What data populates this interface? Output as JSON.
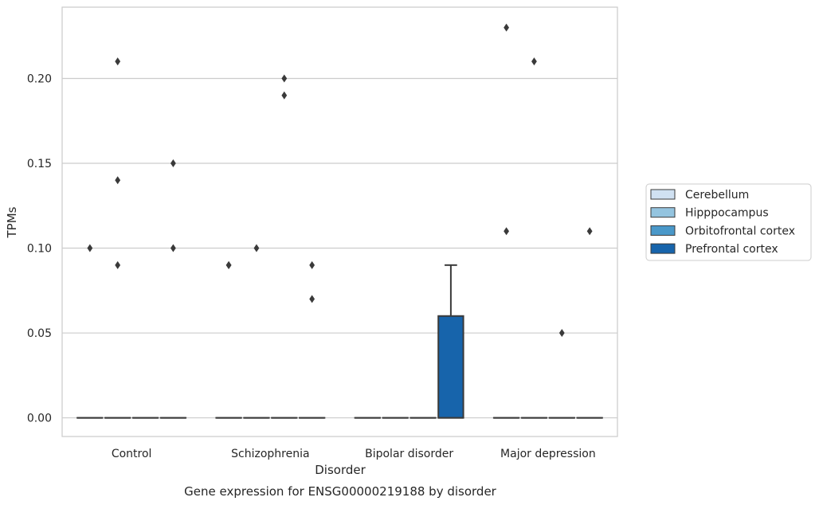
{
  "chart_data": {
    "type": "box",
    "caption": "Gene expression for ENSG00000219188 by disorder",
    "xlabel": "Disorder",
    "ylabel": "TPMs",
    "ylim": [
      -0.011,
      0.242
    ],
    "yticks": [
      0.0,
      0.05,
      0.1,
      0.15,
      0.2
    ],
    "ytick_labels": [
      "0.00",
      "0.05",
      "0.10",
      "0.15",
      "0.20"
    ],
    "grid": "horizontal",
    "legend_position": "right",
    "categories": [
      "Control",
      "Schizophrenia",
      "Bipolar disorder",
      "Major depression"
    ],
    "series": [
      {
        "name": "Cerebellum",
        "color": "#d0e1f2",
        "boxes": [
          {
            "q1": 0,
            "median": 0,
            "q3": 0,
            "whisker_low": 0,
            "whisker_high": 0,
            "outliers": [
              0.1
            ]
          },
          {
            "q1": 0,
            "median": 0,
            "q3": 0,
            "whisker_low": 0,
            "whisker_high": 0,
            "outliers": [
              0.09,
              0.09
            ]
          },
          {
            "q1": 0,
            "median": 0,
            "q3": 0,
            "whisker_low": 0,
            "whisker_high": 0,
            "outliers": []
          },
          {
            "q1": 0,
            "median": 0,
            "q3": 0,
            "whisker_low": 0,
            "whisker_high": 0,
            "outliers": [
              0.23,
              0.11
            ]
          }
        ]
      },
      {
        "name": "Hipppocampus",
        "color": "#94c4df",
        "boxes": [
          {
            "q1": 0,
            "median": 0,
            "q3": 0,
            "whisker_low": 0,
            "whisker_high": 0,
            "outliers": [
              0.21,
              0.14,
              0.09
            ]
          },
          {
            "q1": 0,
            "median": 0,
            "q3": 0,
            "whisker_low": 0,
            "whisker_high": 0,
            "outliers": [
              0.1
            ]
          },
          {
            "q1": 0,
            "median": 0,
            "q3": 0,
            "whisker_low": 0,
            "whisker_high": 0,
            "outliers": []
          },
          {
            "q1": 0,
            "median": 0,
            "q3": 0,
            "whisker_low": 0,
            "whisker_high": 0,
            "outliers": [
              0.21
            ]
          }
        ]
      },
      {
        "name": "Orbitofrontal cortex",
        "color": "#4a98c9",
        "boxes": [
          {
            "q1": 0,
            "median": 0,
            "q3": 0,
            "whisker_low": 0,
            "whisker_high": 0,
            "outliers": []
          },
          {
            "q1": 0,
            "median": 0,
            "q3": 0,
            "whisker_low": 0,
            "whisker_high": 0,
            "outliers": [
              0.2,
              0.19
            ]
          },
          {
            "q1": 0,
            "median": 0,
            "q3": 0,
            "whisker_low": 0,
            "whisker_high": 0,
            "outliers": []
          },
          {
            "q1": 0,
            "median": 0,
            "q3": 0,
            "whisker_low": 0,
            "whisker_high": 0,
            "outliers": [
              0.05
            ]
          }
        ]
      },
      {
        "name": "Prefrontal cortex",
        "color": "#1764ab",
        "boxes": [
          {
            "q1": 0,
            "median": 0,
            "q3": 0,
            "whisker_low": 0,
            "whisker_high": 0,
            "outliers": [
              0.15,
              0.1
            ]
          },
          {
            "q1": 0,
            "median": 0,
            "q3": 0,
            "whisker_low": 0,
            "whisker_high": 0,
            "outliers": [
              0.09,
              0.07
            ]
          },
          {
            "q1": 0,
            "median": 0,
            "q3": 0.06,
            "whisker_low": 0,
            "whisker_high": 0.09,
            "outliers": []
          },
          {
            "q1": 0,
            "median": 0,
            "q3": 0,
            "whisker_low": 0,
            "whisker_high": 0,
            "outliers": [
              0.11
            ]
          }
        ]
      }
    ]
  }
}
